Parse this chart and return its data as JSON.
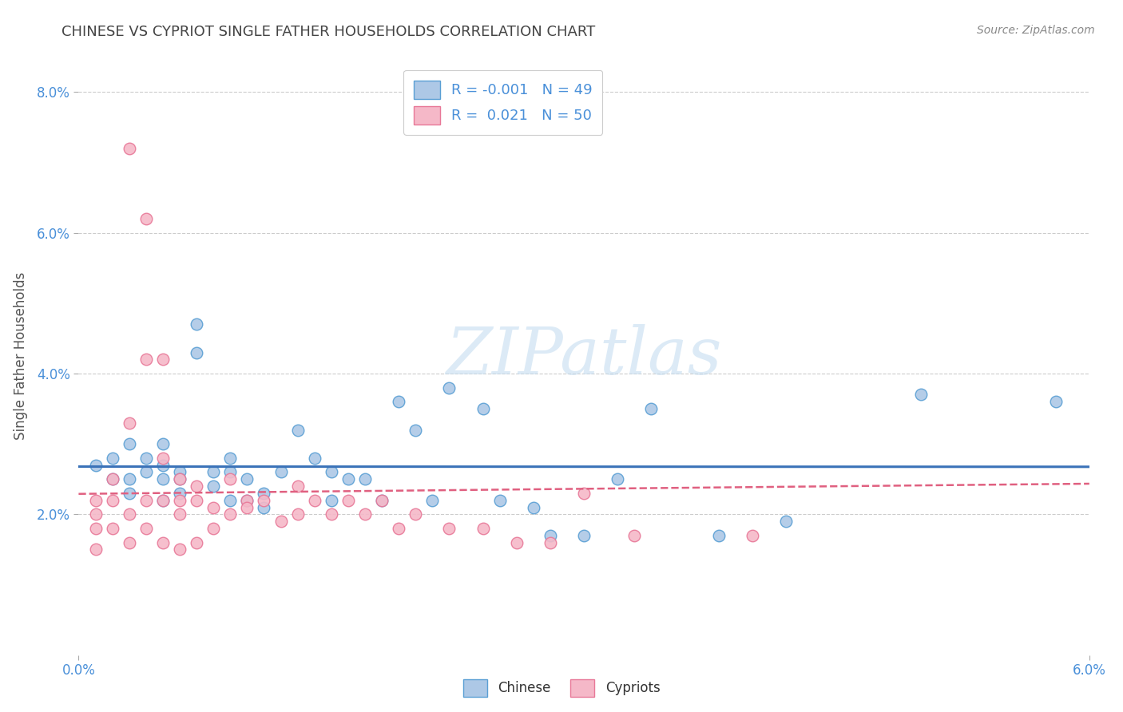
{
  "title": "CHINESE VS CYPRIOT SINGLE FATHER HOUSEHOLDS CORRELATION CHART",
  "source": "Source: ZipAtlas.com",
  "ylabel": "Single Father Households",
  "xlim": [
    0.0,
    0.06
  ],
  "ylim": [
    0.0,
    0.085
  ],
  "xtick_positions": [
    0.0,
    0.06
  ],
  "xticklabels": [
    "0.0%",
    "6.0%"
  ],
  "ytick_positions": [
    0.02,
    0.04,
    0.06,
    0.08
  ],
  "yticklabels": [
    "2.0%",
    "4.0%",
    "6.0%",
    "8.0%"
  ],
  "chinese_R": "-0.001",
  "chinese_N": "49",
  "cypriot_R": "0.021",
  "cypriot_N": "50",
  "chinese_color": "#adc8e6",
  "cypriot_color": "#f5b8c8",
  "chinese_edge_color": "#5a9fd4",
  "cypriot_edge_color": "#e87898",
  "chinese_line_color": "#3a72b8",
  "cypriot_line_color": "#e06080",
  "watermark_color": "#c5ddf0",
  "chinese_x": [
    0.001,
    0.002,
    0.002,
    0.003,
    0.003,
    0.003,
    0.004,
    0.004,
    0.005,
    0.005,
    0.005,
    0.005,
    0.006,
    0.006,
    0.006,
    0.007,
    0.007,
    0.008,
    0.008,
    0.009,
    0.009,
    0.009,
    0.01,
    0.01,
    0.011,
    0.011,
    0.012,
    0.013,
    0.014,
    0.015,
    0.015,
    0.016,
    0.017,
    0.018,
    0.019,
    0.02,
    0.021,
    0.022,
    0.024,
    0.025,
    0.027,
    0.028,
    0.03,
    0.032,
    0.034,
    0.038,
    0.042,
    0.05,
    0.058
  ],
  "chinese_y": [
    0.027,
    0.028,
    0.025,
    0.03,
    0.025,
    0.023,
    0.028,
    0.026,
    0.03,
    0.027,
    0.025,
    0.022,
    0.026,
    0.025,
    0.023,
    0.047,
    0.043,
    0.026,
    0.024,
    0.028,
    0.026,
    0.022,
    0.025,
    0.022,
    0.023,
    0.021,
    0.026,
    0.032,
    0.028,
    0.026,
    0.022,
    0.025,
    0.025,
    0.022,
    0.036,
    0.032,
    0.022,
    0.038,
    0.035,
    0.022,
    0.021,
    0.017,
    0.017,
    0.025,
    0.035,
    0.017,
    0.019,
    0.037,
    0.036
  ],
  "cypriot_x": [
    0.001,
    0.001,
    0.001,
    0.001,
    0.002,
    0.002,
    0.002,
    0.003,
    0.003,
    0.003,
    0.003,
    0.004,
    0.004,
    0.004,
    0.004,
    0.005,
    0.005,
    0.005,
    0.005,
    0.006,
    0.006,
    0.006,
    0.006,
    0.007,
    0.007,
    0.007,
    0.008,
    0.008,
    0.009,
    0.009,
    0.01,
    0.01,
    0.011,
    0.012,
    0.013,
    0.013,
    0.014,
    0.015,
    0.016,
    0.017,
    0.018,
    0.019,
    0.02,
    0.022,
    0.024,
    0.026,
    0.028,
    0.03,
    0.033,
    0.04
  ],
  "cypriot_y": [
    0.022,
    0.02,
    0.018,
    0.015,
    0.025,
    0.022,
    0.018,
    0.072,
    0.033,
    0.02,
    0.016,
    0.062,
    0.042,
    0.022,
    0.018,
    0.042,
    0.028,
    0.022,
    0.016,
    0.025,
    0.022,
    0.02,
    0.015,
    0.024,
    0.022,
    0.016,
    0.021,
    0.018,
    0.025,
    0.02,
    0.022,
    0.021,
    0.022,
    0.019,
    0.024,
    0.02,
    0.022,
    0.02,
    0.022,
    0.02,
    0.022,
    0.018,
    0.02,
    0.018,
    0.018,
    0.016,
    0.016,
    0.023,
    0.017,
    0.017
  ]
}
